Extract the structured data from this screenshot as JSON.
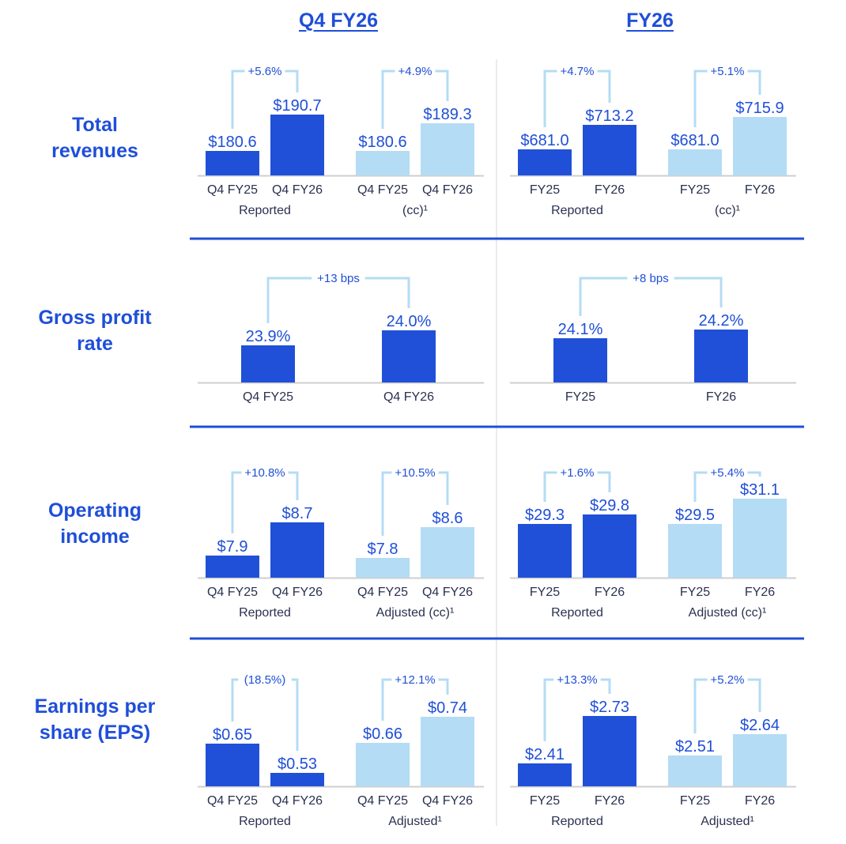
{
  "colors": {
    "accent": "#1f4fd8",
    "dark_bar": "#2050d8",
    "light_bar": "#b4dcf4",
    "bracket": "#b4dcf4",
    "axis_text": "#2a3050",
    "divider": "#1f4fd8"
  },
  "chart_data": {
    "type": "bar",
    "headers": [
      "Q4 FY26",
      "FY26"
    ],
    "rows": [
      {
        "metric": [
          "Total",
          "revenues"
        ],
        "panels": [
          {
            "groups": [
              {
                "label": "Reported",
                "style": "dark",
                "change": "+5.6%",
                "bars": [
                  {
                    "category": "Q4 FY25",
                    "value": 180.6,
                    "label": "$180.6"
                  },
                  {
                    "category": "Q4 FY26",
                    "value": 190.7,
                    "label": "$190.7"
                  }
                ]
              },
              {
                "label": "(cc)¹",
                "style": "light",
                "change": "+4.9%",
                "bars": [
                  {
                    "category": "Q4 FY25",
                    "value": 180.6,
                    "label": "$180.6"
                  },
                  {
                    "category": "Q4 FY26",
                    "value": 189.3,
                    "label": "$189.3"
                  }
                ]
              }
            ]
          },
          {
            "groups": [
              {
                "label": "Reported",
                "style": "dark",
                "change": "+4.7%",
                "bars": [
                  {
                    "category": "FY25",
                    "value": 681.0,
                    "label": "$681.0"
                  },
                  {
                    "category": "FY26",
                    "value": 713.2,
                    "label": "$713.2"
                  }
                ]
              },
              {
                "label": "(cc)¹",
                "style": "light",
                "change": "+5.1%",
                "bars": [
                  {
                    "category": "FY25",
                    "value": 681.0,
                    "label": "$681.0"
                  },
                  {
                    "category": "FY26",
                    "value": 715.9,
                    "label": "$715.9"
                  }
                ]
              }
            ]
          }
        ]
      },
      {
        "metric": [
          "Gross profit",
          "rate"
        ],
        "panels": [
          {
            "groups": [
              {
                "label": "",
                "style": "dark",
                "change": "+13 bps",
                "bars": [
                  {
                    "category": "Q4 FY25",
                    "value": 23.9,
                    "label": "23.9%"
                  },
                  {
                    "category": "Q4 FY26",
                    "value": 24.0,
                    "label": "24.0%"
                  }
                ]
              }
            ]
          },
          {
            "groups": [
              {
                "label": "",
                "style": "dark",
                "change": "+8 bps",
                "bars": [
                  {
                    "category": "FY25",
                    "value": 24.1,
                    "label": "24.1%"
                  },
                  {
                    "category": "FY26",
                    "value": 24.2,
                    "label": "24.2%"
                  }
                ]
              }
            ]
          }
        ]
      },
      {
        "metric": [
          "Operating",
          "income"
        ],
        "panels": [
          {
            "groups": [
              {
                "label": "Reported",
                "style": "dark",
                "change": "+10.8%",
                "bars": [
                  {
                    "category": "Q4 FY25",
                    "value": 7.9,
                    "label": "$7.9"
                  },
                  {
                    "category": "Q4 FY26",
                    "value": 8.7,
                    "label": "$8.7"
                  }
                ]
              },
              {
                "label": "Adjusted (cc)¹",
                "style": "light",
                "change": "+10.5%",
                "bars": [
                  {
                    "category": "Q4 FY25",
                    "value": 7.8,
                    "label": "$7.8"
                  },
                  {
                    "category": "Q4 FY26",
                    "value": 8.6,
                    "label": "$8.6"
                  }
                ]
              }
            ]
          },
          {
            "groups": [
              {
                "label": "Reported",
                "style": "dark",
                "change": "+1.6%",
                "bars": [
                  {
                    "category": "FY25",
                    "value": 29.3,
                    "label": "$29.3"
                  },
                  {
                    "category": "FY26",
                    "value": 29.8,
                    "label": "$29.8"
                  }
                ]
              },
              {
                "label": "Adjusted (cc)¹",
                "style": "light",
                "change": "+5.4%",
                "bars": [
                  {
                    "category": "FY25",
                    "value": 29.5,
                    "label": "$29.5"
                  },
                  {
                    "category": "FY26",
                    "value": 31.1,
                    "label": "$31.1"
                  }
                ]
              }
            ]
          }
        ]
      },
      {
        "metric": [
          "Earnings per",
          "share (EPS)"
        ],
        "panels": [
          {
            "groups": [
              {
                "label": "Reported",
                "style": "dark",
                "change": "(18.5%)",
                "bars": [
                  {
                    "category": "Q4 FY25",
                    "value": 0.65,
                    "label": "$0.65"
                  },
                  {
                    "category": "Q4 FY26",
                    "value": 0.53,
                    "label": "$0.53"
                  }
                ]
              },
              {
                "label": "Adjusted¹",
                "style": "light",
                "change": "+12.1%",
                "bars": [
                  {
                    "category": "Q4 FY25",
                    "value": 0.66,
                    "label": "$0.66"
                  },
                  {
                    "category": "Q4 FY26",
                    "value": 0.74,
                    "label": "$0.74"
                  }
                ]
              }
            ]
          },
          {
            "groups": [
              {
                "label": "Reported",
                "style": "dark",
                "change": "+13.3%",
                "bars": [
                  {
                    "category": "FY25",
                    "value": 2.41,
                    "label": "$2.41"
                  },
                  {
                    "category": "FY26",
                    "value": 2.73,
                    "label": "$2.73"
                  }
                ]
              },
              {
                "label": "Adjusted¹",
                "style": "light",
                "change": "+5.2%",
                "bars": [
                  {
                    "category": "FY25",
                    "value": 2.51,
                    "label": "$2.51"
                  },
                  {
                    "category": "FY26",
                    "value": 2.64,
                    "label": "$2.64"
                  }
                ]
              }
            ]
          }
        ]
      }
    ]
  }
}
